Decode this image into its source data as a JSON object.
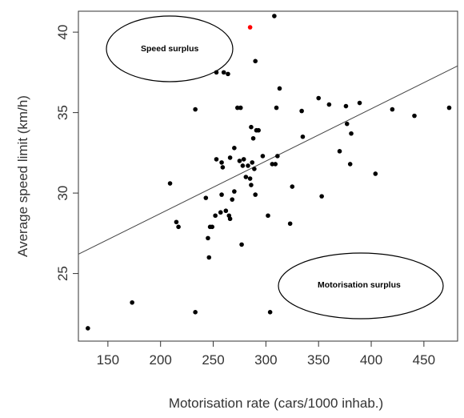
{
  "chart_data": {
    "type": "scatter",
    "title": "",
    "xlabel": "Motorisation rate (cars/1000 inhab.)",
    "ylabel": "Average speed limit (km/h)",
    "xlim": [
      122,
      482
    ],
    "ylim": [
      20.8,
      41.3
    ],
    "xticks": [
      150,
      200,
      250,
      300,
      350,
      400,
      450
    ],
    "yticks": [
      25,
      30,
      35,
      40
    ],
    "grid": false,
    "legend": "none",
    "colors": {
      "points": "#000000",
      "highlight": "#ff0000",
      "trend": "#444444"
    },
    "trend_line": {
      "from": [
        122,
        26.2
      ],
      "to": [
        482,
        37.9
      ]
    },
    "highlight_point": {
      "x": 285,
      "y": 40.3
    },
    "points": [
      {
        "x": 131,
        "y": 21.6
      },
      {
        "x": 173,
        "y": 23.2
      },
      {
        "x": 209,
        "y": 30.6
      },
      {
        "x": 215,
        "y": 28.2
      },
      {
        "x": 217,
        "y": 27.9
      },
      {
        "x": 233,
        "y": 22.6
      },
      {
        "x": 233,
        "y": 35.2
      },
      {
        "x": 243,
        "y": 29.7
      },
      {
        "x": 245,
        "y": 27.2
      },
      {
        "x": 246,
        "y": 26.0
      },
      {
        "x": 247,
        "y": 27.9
      },
      {
        "x": 249,
        "y": 27.9
      },
      {
        "x": 252,
        "y": 28.6
      },
      {
        "x": 253,
        "y": 32.1
      },
      {
        "x": 253,
        "y": 37.5
      },
      {
        "x": 257,
        "y": 28.8
      },
      {
        "x": 258,
        "y": 29.9
      },
      {
        "x": 258,
        "y": 31.9
      },
      {
        "x": 259,
        "y": 31.6
      },
      {
        "x": 260,
        "y": 37.5
      },
      {
        "x": 262,
        "y": 28.9
      },
      {
        "x": 264,
        "y": 37.4
      },
      {
        "x": 265,
        "y": 28.6
      },
      {
        "x": 266,
        "y": 28.4
      },
      {
        "x": 266,
        "y": 32.2
      },
      {
        "x": 268,
        "y": 29.6
      },
      {
        "x": 270,
        "y": 30.1
      },
      {
        "x": 270,
        "y": 32.8
      },
      {
        "x": 273,
        "y": 35.3
      },
      {
        "x": 275,
        "y": 32.0
      },
      {
        "x": 276,
        "y": 35.3
      },
      {
        "x": 277,
        "y": 26.8
      },
      {
        "x": 278,
        "y": 31.7
      },
      {
        "x": 279,
        "y": 32.1
      },
      {
        "x": 281,
        "y": 31.0
      },
      {
        "x": 283,
        "y": 31.7
      },
      {
        "x": 285,
        "y": 30.9
      },
      {
        "x": 286,
        "y": 34.1
      },
      {
        "x": 286,
        "y": 30.5
      },
      {
        "x": 287,
        "y": 31.9
      },
      {
        "x": 288,
        "y": 33.4
      },
      {
        "x": 289,
        "y": 31.5
      },
      {
        "x": 290,
        "y": 29.9
      },
      {
        "x": 290,
        "y": 38.2
      },
      {
        "x": 291,
        "y": 33.9
      },
      {
        "x": 293,
        "y": 33.9
      },
      {
        "x": 297,
        "y": 32.3
      },
      {
        "x": 302,
        "y": 28.6
      },
      {
        "x": 304,
        "y": 22.6
      },
      {
        "x": 306,
        "y": 31.8
      },
      {
        "x": 308,
        "y": 41.0
      },
      {
        "x": 309,
        "y": 31.8
      },
      {
        "x": 310,
        "y": 35.3
      },
      {
        "x": 311,
        "y": 32.3
      },
      {
        "x": 313,
        "y": 36.5
      },
      {
        "x": 323,
        "y": 28.1
      },
      {
        "x": 325,
        "y": 30.4
      },
      {
        "x": 334,
        "y": 35.1
      },
      {
        "x": 335,
        "y": 33.5
      },
      {
        "x": 350,
        "y": 35.9
      },
      {
        "x": 353,
        "y": 29.8
      },
      {
        "x": 360,
        "y": 35.5
      },
      {
        "x": 370,
        "y": 32.6
      },
      {
        "x": 376,
        "y": 35.4
      },
      {
        "x": 377,
        "y": 34.3
      },
      {
        "x": 380,
        "y": 31.8
      },
      {
        "x": 381,
        "y": 33.7
      },
      {
        "x": 389,
        "y": 35.6
      },
      {
        "x": 404,
        "y": 31.2
      },
      {
        "x": 420,
        "y": 35.2
      },
      {
        "x": 441,
        "y": 34.8
      },
      {
        "x": 474,
        "y": 35.3
      }
    ],
    "annotations": [
      {
        "text": "Speed surplus",
        "position": "top-left"
      },
      {
        "text": "Motorisation surplus",
        "position": "bottom-right"
      }
    ]
  }
}
